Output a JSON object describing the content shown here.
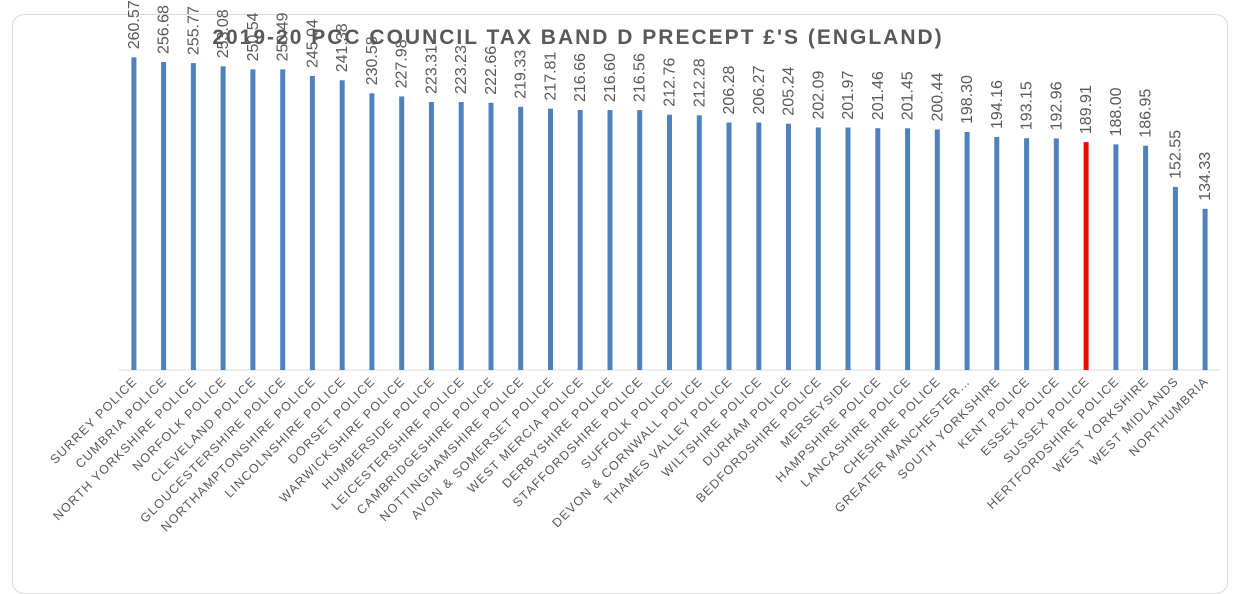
{
  "chart_data": {
    "type": "bar",
    "title": "2019-20 PCC COUNCIL TAX BAND D PRECEPT £'S (ENGLAND)",
    "xlabel": "",
    "ylabel": "",
    "ylim": [
      0,
      300
    ],
    "grid": false,
    "legend": "none",
    "bar_color": "#4f81bd",
    "highlight_color": "#ff0000",
    "highlight_category": "SUSSEX POLICE",
    "categories": [
      "SURREY POLICE",
      "CUMBRIA POLICE",
      "NORTH YORKSHIRE POLICE",
      "NORFOLK POLICE",
      "CLEVELAND POLICE",
      "GLOUCESTERSHIRE POLICE",
      "NORTHAMPTONSHIRE POLICE",
      "LINCOLNSHIRE POLICE",
      "DORSET POLICE",
      "WARWICKSHIRE POLICE",
      "HUMBERSIDE POLICE",
      "LEICESTERSHIRE POLICE",
      "CAMBRIDGESHIRE POLICE",
      "NOTTINGHAMSHIRE POLICE",
      "AVON & SOMERSET POLICE",
      "WEST MERCIA POLICE",
      "DERBYSHIRE POLICE",
      "STAFFORDSHIRE POLICE",
      "SUFFOLK POLICE",
      "DEVON & CORNWALL POLICE",
      "THAMES VALLEY POLICE",
      "WILTSHIRE POLICE",
      "DURHAM POLICE",
      "BEDFORDSHIRE POLICE",
      "MERSEYSIDE",
      "HAMPSHIRE POLICE",
      "LANCASHIRE POLICE",
      "CHESHIRE POLICE",
      "GREATER MANCHESTER…",
      "SOUTH YORKSHIRE",
      "KENT POLICE",
      "ESSEX POLICE",
      "SUSSEX POLICE",
      "HERTFORDSHIRE POLICE",
      "WEST YORKSHIRE",
      "WEST MIDLANDS",
      "NORTHUMBRIA"
    ],
    "values": [
      260.57,
      256.68,
      255.77,
      253.08,
      250.54,
      250.49,
      245.04,
      241.38,
      230.58,
      227.98,
      223.31,
      223.23,
      222.66,
      219.33,
      217.81,
      216.66,
      216.6,
      216.56,
      212.76,
      212.28,
      206.28,
      206.27,
      205.24,
      202.09,
      201.97,
      201.46,
      201.45,
      200.44,
      198.3,
      194.16,
      193.15,
      192.96,
      189.91,
      188.0,
      186.95,
      152.55,
      134.33
    ],
    "data_labels": [
      "260.57",
      "256.68",
      "255.77",
      "253.08",
      "250.54",
      "250.49",
      "245.04",
      "241.38",
      "230.58",
      "227.98",
      "223.31",
      "223.23",
      "222.66",
      "219.33",
      "217.81",
      "216.66",
      "216.60",
      "216.56",
      "212.76",
      "212.28",
      "206.28",
      "206.27",
      "205.24",
      "202.09",
      "201.97",
      "201.46",
      "201.45",
      "200.44",
      "198.30",
      "194.16",
      "193.15",
      "192.96",
      "189.91",
      "188.00",
      "186.95",
      "152.55",
      "134.33"
    ]
  }
}
